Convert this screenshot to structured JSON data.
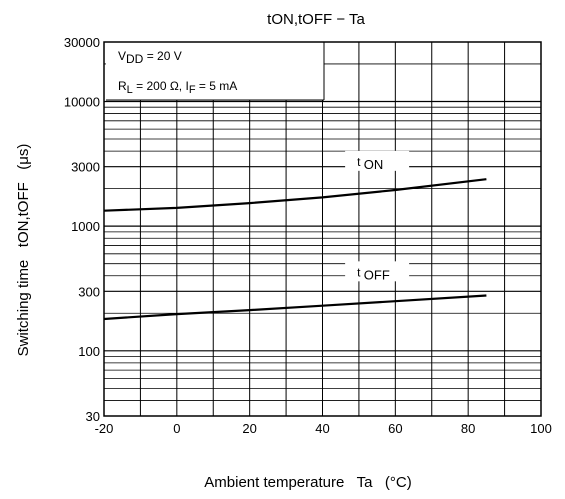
{
  "chart_data": {
    "type": "line",
    "title": "tON,tOFF − Ta",
    "xlabel": "Ambient temperature   Ta   (°C)",
    "ylabel": "Switching time   tON,tOFF   (μs)",
    "x_ticks": [
      "-20",
      "0",
      "20",
      "40",
      "60",
      "80",
      "100"
    ],
    "y_ticks": [
      "30",
      "100",
      "300",
      "1000",
      "3000",
      "10000",
      "30000"
    ],
    "xlim": [
      -20,
      100
    ],
    "ylim": [
      30,
      30000
    ],
    "y_scale": "log",
    "grid": true,
    "conditions": {
      "line1_main": "V",
      "line1_sub": "DD",
      "line1_rest": " = 20 V",
      "line2_main": "R",
      "line2_sub": "L",
      "line2_mid": " = 200 Ω, I",
      "line2_sub2": "F",
      "line2_rest": " = 5 mA"
    },
    "series": [
      {
        "name": "t ON",
        "label_main": "t",
        "label_sub": "ON",
        "x": [
          -20,
          0,
          20,
          40,
          60,
          85
        ],
        "y": [
          1330,
          1400,
          1530,
          1700,
          1950,
          2380
        ]
      },
      {
        "name": "t OFF",
        "label_main": "t",
        "label_sub": "OFF",
        "x": [
          -20,
          0,
          20,
          40,
          60,
          85
        ],
        "y": [
          180,
          197,
          212,
          230,
          250,
          278
        ]
      }
    ]
  }
}
